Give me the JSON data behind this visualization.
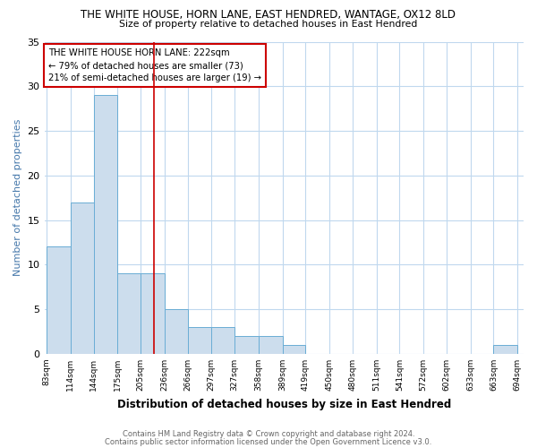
{
  "title": "THE WHITE HOUSE, HORN LANE, EAST HENDRED, WANTAGE, OX12 8LD",
  "subtitle": "Size of property relative to detached houses in East Hendred",
  "xlabel": "Distribution of detached houses by size in East Hendred",
  "ylabel": "Number of detached properties",
  "bar_edges": [
    83,
    114,
    144,
    175,
    205,
    236,
    266,
    297,
    327,
    358,
    389,
    419,
    450,
    480,
    511,
    541,
    572,
    602,
    633,
    663,
    694
  ],
  "bar_heights": [
    12,
    17,
    29,
    9,
    9,
    5,
    3,
    3,
    2,
    2,
    1,
    0,
    0,
    0,
    0,
    0,
    0,
    0,
    0,
    1,
    0
  ],
  "bar_color": "#ccdded",
  "bar_edge_color": "#6aadd5",
  "red_line_x": 222,
  "ylim": [
    0,
    35
  ],
  "yticks": [
    0,
    5,
    10,
    15,
    20,
    25,
    30,
    35
  ],
  "annotation_line1": "THE WHITE HOUSE HORN LANE: 222sqm",
  "annotation_line2": "← 79% of detached houses are smaller (73)",
  "annotation_line3": "21% of semi-detached houses are larger (19) →",
  "footnote1": "Contains HM Land Registry data © Crown copyright and database right 2024.",
  "footnote2": "Contains public sector information licensed under the Open Government Licence v3.0.",
  "background_color": "#ffffff",
  "grid_color": "#c0d8ee"
}
